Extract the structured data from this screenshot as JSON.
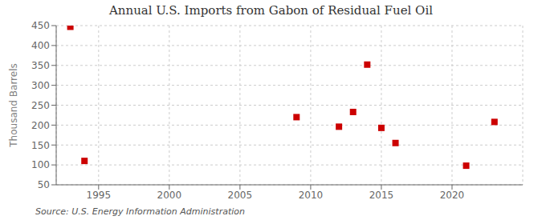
{
  "chart_data": {
    "type": "scatter",
    "title": "Annual U.S. Imports from Gabon of Residual Fuel Oil",
    "ylabel": "Thousand Barrels",
    "annotations": [
      "Source: U.S. Energy Information Administration"
    ],
    "x": [
      1993,
      1994,
      2009,
      2012,
      2013,
      2014,
      2015,
      2016,
      2021,
      2023
    ],
    "values": [
      447,
      110,
      220,
      196,
      233,
      352,
      193,
      155,
      98,
      208
    ],
    "color": "#cc0000",
    "marker": "square",
    "xlim": [
      1992,
      2025
    ],
    "ylim": [
      50,
      450
    ],
    "xticks": [
      1995,
      2000,
      2005,
      2010,
      2015,
      2020
    ],
    "yticks": [
      50,
      100,
      150,
      200,
      250,
      300,
      350,
      400,
      450
    ],
    "grid": true
  }
}
